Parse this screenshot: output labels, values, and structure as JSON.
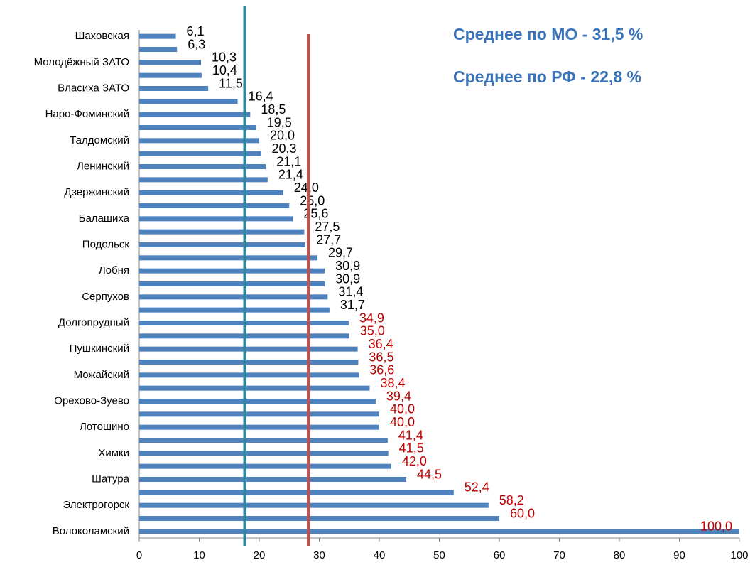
{
  "chart_data": {
    "type": "bar",
    "orientation": "horizontal",
    "categories": [
      "Шаховская",
      null,
      "Молодёжный ЗАТО",
      null,
      "Власиха ЗАТО",
      null,
      "Наро-Фоминский",
      null,
      "Талдомский",
      null,
      "Ленинский",
      null,
      "Дзержинский",
      null,
      "Балашиха",
      null,
      "Подольск",
      null,
      "Лобня",
      null,
      "Серпухов",
      null,
      "Долгопрудный",
      null,
      "Пушкинский",
      null,
      "Можайский",
      null,
      "Орехово-Зуево",
      null,
      "Лотошино",
      null,
      "Химки",
      null,
      "Шатура",
      null,
      "Электрогорск",
      null,
      "Волоколамский"
    ],
    "values": [
      6.1,
      6.3,
      10.3,
      10.4,
      11.5,
      16.4,
      18.5,
      19.5,
      20.0,
      20.3,
      21.1,
      21.4,
      24.0,
      25.0,
      25.6,
      27.5,
      27.7,
      29.7,
      30.9,
      30.9,
      31.4,
      31.7,
      34.9,
      35.0,
      36.4,
      36.5,
      36.6,
      38.4,
      39.4,
      40.0,
      40.0,
      41.4,
      41.5,
      42.0,
      44.5,
      52.4,
      58.2,
      60.0,
      100.0
    ],
    "value_labels": [
      "6,1",
      "6,3",
      "10,3",
      "10,4",
      "11,5",
      "16,4",
      "18,5",
      "19,5",
      "20,0",
      "20,3",
      "21,1",
      "21,4",
      "24,0",
      "25,0",
      "25,6",
      "27,5",
      "27,7",
      "29,7",
      "30,9",
      "30,9",
      "31,4",
      "31,7",
      "34,9",
      "35,0",
      "36,4",
      "36,5",
      "36,6",
      "38,4",
      "39,4",
      "40,0",
      "40,0",
      "41,4",
      "41,5",
      "42,0",
      "44,5",
      "52,4",
      "58,2",
      "60,0",
      "100,0"
    ],
    "value_label_colors": [
      "#000000",
      "#000000",
      "#000000",
      "#000000",
      "#000000",
      "#000000",
      "#000000",
      "#000000",
      "#000000",
      "#000000",
      "#000000",
      "#000000",
      "#000000",
      "#000000",
      "#000000",
      "#000000",
      "#000000",
      "#000000",
      "#000000",
      "#000000",
      "#000000",
      "#000000",
      "#c00000",
      "#c00000",
      "#c00000",
      "#c00000",
      "#c00000",
      "#c00000",
      "#c00000",
      "#c00000",
      "#c00000",
      "#c00000",
      "#c00000",
      "#c00000",
      "#c00000",
      "#c00000",
      "#c00000",
      "#c00000",
      "#c00000"
    ],
    "color": "#4f81bd",
    "xlim": [
      0,
      100
    ],
    "xticks": [
      0,
      10,
      20,
      30,
      40,
      50,
      60,
      70,
      80,
      90,
      100
    ],
    "grid": false,
    "reference_lines": [
      {
        "value": 17.6,
        "color": "#31849b"
      },
      {
        "value": 28.2,
        "color": "#c0504d"
      }
    ],
    "annotations": [
      "Среднее по МО - 31,5 %",
      "Среднее по РФ - 22,8 %"
    ]
  }
}
